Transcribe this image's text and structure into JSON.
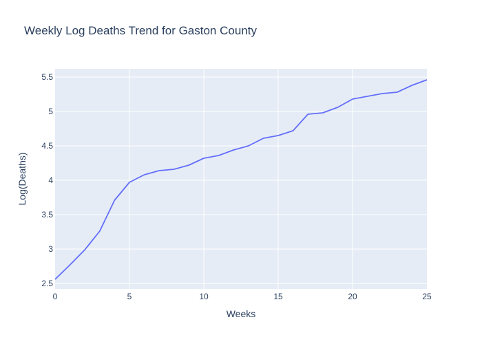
{
  "chart_data": {
    "type": "line",
    "title": "Weekly Log Deaths Trend for Gaston County",
    "xlabel": "Weeks",
    "ylabel": "Log(Deaths)",
    "xlim": [
      0,
      25
    ],
    "ylim": [
      2.42,
      5.62
    ],
    "grid": true,
    "legend": "none",
    "x_ticks": [
      0,
      5,
      10,
      15,
      20,
      25
    ],
    "x_tick_labels": [
      "0",
      "5",
      "10",
      "15",
      "20",
      "25"
    ],
    "y_ticks": [
      2.5,
      3,
      3.5,
      4,
      4.5,
      5,
      5.5
    ],
    "y_tick_labels": [
      "2.5",
      "3",
      "3.5",
      "4",
      "4.5",
      "5",
      "5.5"
    ],
    "colors": {
      "plot_bg": "#e5ecf6",
      "grid": "#ffffff",
      "line": "#636efa",
      "text": "#2a3f5f"
    },
    "series": [
      {
        "x": [
          0,
          1,
          2,
          3,
          4,
          5,
          6,
          7,
          8,
          9,
          10,
          11,
          12,
          13,
          14,
          15,
          16,
          17,
          18,
          19,
          20,
          21,
          22,
          23,
          24,
          25
        ],
        "values": [
          2.56,
          2.77,
          2.99,
          3.26,
          3.71,
          3.97,
          4.08,
          4.14,
          4.16,
          4.22,
          4.32,
          4.36,
          4.44,
          4.5,
          4.61,
          4.65,
          4.72,
          4.96,
          4.98,
          5.06,
          5.18,
          5.22,
          5.26,
          5.28,
          5.38,
          5.46
        ]
      }
    ]
  }
}
